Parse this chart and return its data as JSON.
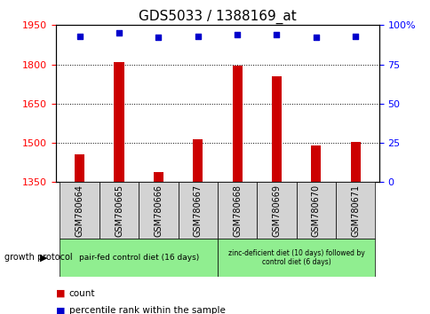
{
  "title": "GDS5033 / 1388169_at",
  "samples": [
    "GSM780664",
    "GSM780665",
    "GSM780666",
    "GSM780667",
    "GSM780668",
    "GSM780669",
    "GSM780670",
    "GSM780671"
  ],
  "counts": [
    1455,
    1810,
    1390,
    1515,
    1795,
    1755,
    1490,
    1505
  ],
  "percentiles": [
    93,
    95,
    92,
    93,
    94,
    94,
    92,
    93
  ],
  "ylim_left": [
    1350,
    1950
  ],
  "ylim_right": [
    0,
    100
  ],
  "yticks_left": [
    1350,
    1500,
    1650,
    1800,
    1950
  ],
  "yticks_right": [
    0,
    25,
    50,
    75,
    100
  ],
  "ytick_labels_right": [
    "0",
    "25",
    "50",
    "75",
    "100%"
  ],
  "bar_color": "#cc0000",
  "dot_color": "#0000cc",
  "bar_width": 0.25,
  "group1_label": "pair-fed control diet (16 days)",
  "group2_label": "zinc-deficient diet (10 days) followed by\ncontrol diet (6 days)",
  "group1_color": "#90ee90",
  "group2_color": "#90ee90",
  "protocol_label": "growth protocol",
  "legend_count_label": "count",
  "legend_pct_label": "percentile rank within the sample",
  "title_fontsize": 11,
  "tick_label_fontsize": 8,
  "sample_label_fontsize": 7,
  "sample_box_color": "#d3d3d3"
}
